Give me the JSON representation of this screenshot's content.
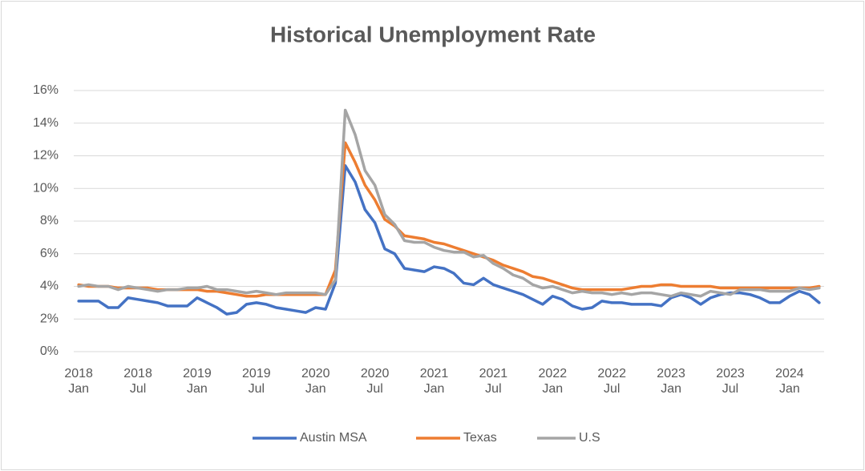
{
  "chart_data": {
    "type": "line",
    "title": "Historical Unemployment Rate",
    "categories": [
      "2018 Jan",
      null,
      null,
      null,
      null,
      null,
      "2018 Jul",
      null,
      null,
      null,
      null,
      null,
      "2019 Jan",
      null,
      null,
      null,
      null,
      null,
      "2019 Jul",
      null,
      null,
      null,
      null,
      null,
      "2020 Jan",
      null,
      null,
      null,
      null,
      null,
      "2020 Jul",
      null,
      null,
      null,
      null,
      null,
      "2021 Jan",
      null,
      null,
      null,
      null,
      null,
      "2021 Jul",
      null,
      null,
      null,
      null,
      null,
      "2022 Jan",
      null,
      null,
      null,
      null,
      null,
      "2022 Jul",
      null,
      null,
      null,
      null,
      null,
      "2023 Jan",
      null,
      null,
      null,
      null,
      null,
      "2023 Jul",
      null,
      null,
      null,
      null,
      null,
      "2024 Jan",
      null,
      null,
      null
    ],
    "series": [
      {
        "name": "Austin MSA",
        "color": "#4472c4",
        "values": [
          3.1,
          3.1,
          3.1,
          2.7,
          2.7,
          3.3,
          3.2,
          3.1,
          3.0,
          2.8,
          2.8,
          2.8,
          3.3,
          3.0,
          2.7,
          2.3,
          2.4,
          2.9,
          3.0,
          2.9,
          2.7,
          2.6,
          2.5,
          2.4,
          2.7,
          2.6,
          4.2,
          11.4,
          10.4,
          8.7,
          7.9,
          6.3,
          6.0,
          5.1,
          5.0,
          4.9,
          5.2,
          5.1,
          4.8,
          4.2,
          4.1,
          4.5,
          4.1,
          3.9,
          3.7,
          3.5,
          3.2,
          2.9,
          3.4,
          3.2,
          2.8,
          2.6,
          2.7,
          3.1,
          3.0,
          3.0,
          2.9,
          2.9,
          2.9,
          2.8,
          3.3,
          3.5,
          3.3,
          2.9,
          3.3,
          3.5,
          3.6,
          3.6,
          3.5,
          3.3,
          3.0,
          3.0,
          3.4,
          3.7,
          3.5,
          3.0
        ]
      },
      {
        "name": "Texas",
        "color": "#ed7d31",
        "values": [
          4.1,
          4.0,
          4.0,
          4.0,
          3.9,
          3.9,
          3.9,
          3.9,
          3.8,
          3.8,
          3.8,
          3.8,
          3.8,
          3.7,
          3.7,
          3.6,
          3.5,
          3.4,
          3.4,
          3.5,
          3.5,
          3.5,
          3.5,
          3.5,
          3.5,
          3.5,
          5.0,
          12.8,
          11.6,
          10.2,
          9.3,
          8.1,
          7.7,
          7.1,
          7.0,
          6.9,
          6.7,
          6.6,
          6.4,
          6.2,
          6.0,
          5.8,
          5.6,
          5.3,
          5.1,
          4.9,
          4.6,
          4.5,
          4.3,
          4.1,
          3.9,
          3.8,
          3.8,
          3.8,
          3.8,
          3.8,
          3.9,
          4.0,
          4.0,
          4.1,
          4.1,
          4.0,
          4.0,
          4.0,
          4.0,
          3.9,
          3.9,
          3.9,
          3.9,
          3.9,
          3.9,
          3.9,
          3.9,
          3.9,
          3.9,
          4.0
        ]
      },
      {
        "name": "U.S",
        "color": "#a5a5a5",
        "values": [
          4.0,
          4.1,
          4.0,
          4.0,
          3.8,
          4.0,
          3.9,
          3.8,
          3.7,
          3.8,
          3.8,
          3.9,
          3.9,
          4.0,
          3.8,
          3.8,
          3.7,
          3.6,
          3.7,
          3.6,
          3.5,
          3.6,
          3.6,
          3.6,
          3.6,
          3.5,
          4.4,
          14.8,
          13.3,
          11.1,
          10.2,
          8.4,
          7.8,
          6.8,
          6.7,
          6.7,
          6.4,
          6.2,
          6.1,
          6.1,
          5.8,
          5.9,
          5.4,
          5.1,
          4.7,
          4.5,
          4.1,
          3.9,
          4.0,
          3.8,
          3.6,
          3.7,
          3.6,
          3.6,
          3.5,
          3.6,
          3.5,
          3.6,
          3.6,
          3.5,
          3.4,
          3.6,
          3.5,
          3.4,
          3.7,
          3.6,
          3.5,
          3.8,
          3.8,
          3.8,
          3.7,
          3.7,
          3.7,
          3.9,
          3.8,
          3.9
        ]
      }
    ],
    "ylim": [
      0,
      16
    ],
    "yticks": [
      {
        "value": 0,
        "label": "0%"
      },
      {
        "value": 2,
        "label": "2%"
      },
      {
        "value": 4,
        "label": "4%"
      },
      {
        "value": 6,
        "label": "6%"
      },
      {
        "value": 8,
        "label": "8%"
      },
      {
        "value": 10,
        "label": "10%"
      },
      {
        "value": 12,
        "label": "12%"
      },
      {
        "value": 14,
        "label": "14%"
      },
      {
        "value": 16,
        "label": "16%"
      }
    ],
    "grid": true,
    "legend": "bottom"
  }
}
